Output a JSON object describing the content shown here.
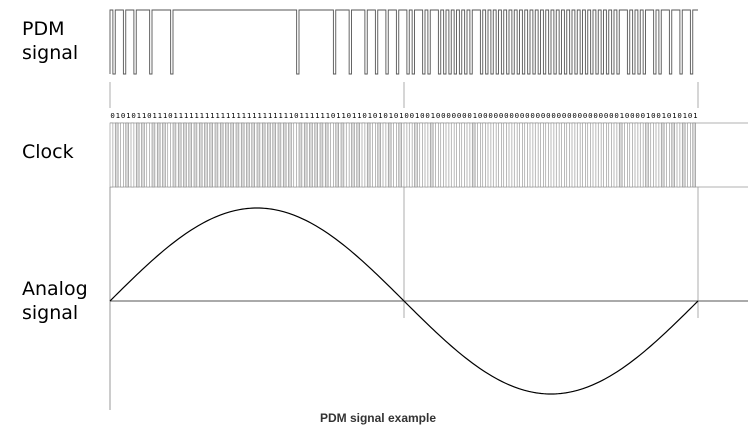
{
  "labels": {
    "pdm": [
      "PDM",
      "signal"
    ],
    "clock": "Clock",
    "analog": [
      "Analog",
      "signal"
    ]
  },
  "bits": "0101011011101111111111111111111111101111110110110101010100100100000001000000000000000000000000000100001001010101",
  "caption": "PDM signal example",
  "colors": {
    "line": "#000000",
    "grid": "#999999",
    "clock_fill": "#d9d9d9",
    "clock_stroke": "#8c8c8c"
  }
}
